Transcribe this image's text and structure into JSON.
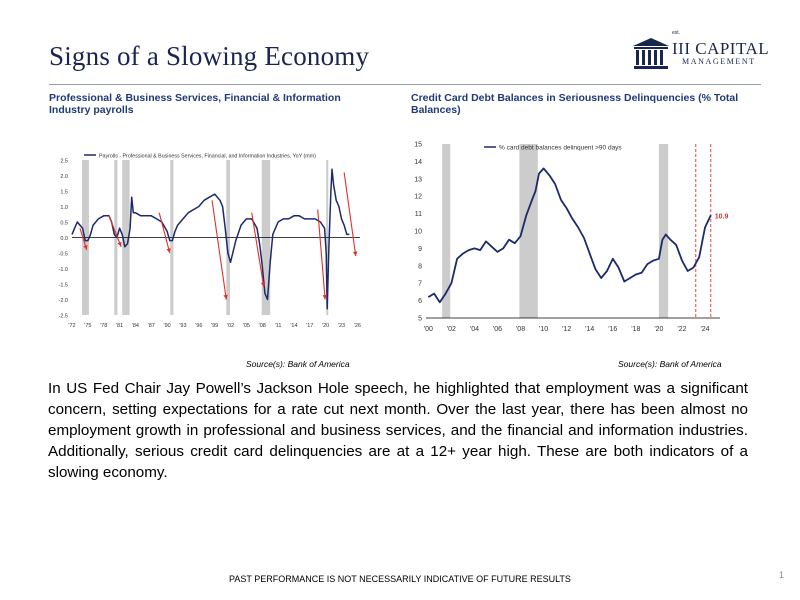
{
  "page": {
    "title": "Signs of a Slowing Economy",
    "logo": {
      "tagline": "est.",
      "main": "III CAPITAL",
      "sub": "MANAGEMENT"
    },
    "body": "In US Fed Chair Jay Powell’s Jackson Hole speech, he highlighted that employment was a significant concern, setting expectations for a rate cut next month. Over the last year, there has been almost no employment growth in professional and business services, and the financial and information industries. Additionally, serious credit card delinquencies are at a 12+ year high. These are both indicators of a slowing economy.",
    "footer": "PAST PERFORMANCE IS NOT NECESSARILY INDICATIVE OF FUTURE RESULTS",
    "page_number": "1"
  },
  "left_panel": {
    "heading": "Professional & Business Services, Financial & Information Industry payrolls",
    "source": "Source(s): Bank of America"
  },
  "right_panel": {
    "heading": "Credit Card Debt Balances in Seriousness Delinquencies (% Total Balances)",
    "source": "Source(s): Bank of America"
  },
  "colors": {
    "navy": "#1a2650",
    "heading_blue": "#1f3a78",
    "series": "#1b2a6b",
    "arrow_red": "#e0312b",
    "recession_grey": "#cccccc"
  },
  "chart_data": [
    {
      "type": "line",
      "legend": "Payrolls - Professional & Business Services, Financial, and Information Industries, YoY (mm)",
      "ylim": [
        -2.5,
        2.5
      ],
      "yticks": [
        "2.5",
        "2.0",
        "1.5",
        "1.0",
        "0.5",
        "0.0",
        "-0.5",
        "-1.0",
        "-1.5",
        "-2.0",
        "-2.5"
      ],
      "xlim": [
        1972,
        2026.5
      ],
      "xticks": [
        "'72",
        "'75",
        "'78",
        "'81",
        "'84",
        "'87",
        "'90",
        "'93",
        "'96",
        "'99",
        "'02",
        "'05",
        "'08",
        "'11",
        "'14",
        "'17",
        "'20",
        "'23",
        "'26"
      ],
      "recessions": [
        [
          1973.9,
          1975.2
        ],
        [
          1980.0,
          1980.6
        ],
        [
          1981.5,
          1982.9
        ],
        [
          1990.6,
          1991.2
        ],
        [
          2001.2,
          2001.9
        ],
        [
          2007.9,
          2009.5
        ],
        [
          2020.1,
          2020.5
        ]
      ],
      "series": [
        {
          "x": [
            1972,
            1972.5,
            1973,
            1973.5,
            1974,
            1974.5,
            1975,
            1975.5,
            1976,
            1976.5,
            1977,
            1978,
            1979,
            1979.5,
            1980,
            1980.5,
            1981,
            1981.5,
            1982,
            1982.5,
            1983,
            1983.3,
            1983.6,
            1984,
            1985,
            1986,
            1987,
            1988,
            1989,
            1990,
            1990.5,
            1991,
            1991.5,
            1992,
            1993,
            1994,
            1995,
            1996,
            1997,
            1998,
            1999,
            2000,
            2000.5,
            2001,
            2001.5,
            2002,
            2003,
            2004,
            2005,
            2006,
            2007,
            2007.5,
            2008,
            2008.5,
            2009,
            2009.5,
            2010,
            2011,
            2012,
            2013,
            2014,
            2015,
            2016,
            2017,
            2018,
            2019,
            2019.8,
            2020.1,
            2020.3,
            2020.6,
            2021,
            2021.2,
            2021.5,
            2022,
            2022.5,
            2023,
            2023.5,
            2024,
            2024.5
          ],
          "y": [
            0.1,
            0.3,
            0.5,
            0.4,
            0.3,
            -0.1,
            -0.1,
            0.1,
            0.4,
            0.5,
            0.6,
            0.7,
            0.7,
            0.5,
            0.1,
            0.0,
            0.3,
            0.1,
            -0.3,
            -0.2,
            0.3,
            1.3,
            0.8,
            0.8,
            0.7,
            0.7,
            0.7,
            0.6,
            0.5,
            0.2,
            -0.1,
            -0.1,
            0.2,
            0.4,
            0.6,
            0.8,
            0.9,
            1.0,
            1.2,
            1.3,
            1.4,
            1.2,
            1.0,
            0.3,
            -0.5,
            -0.8,
            -0.1,
            0.4,
            0.6,
            0.6,
            0.3,
            -0.2,
            -0.9,
            -1.8,
            -2.0,
            -0.8,
            0.1,
            0.5,
            0.6,
            0.6,
            0.7,
            0.7,
            0.6,
            0.6,
            0.6,
            0.5,
            0.3,
            -0.5,
            -2.3,
            -0.4,
            1.5,
            2.2,
            1.7,
            1.2,
            1.0,
            0.6,
            0.4,
            0.1,
            0.1
          ]
        }
      ],
      "arrows": [
        {
          "from": [
            1973.5,
            0.3
          ],
          "to": [
            1974.8,
            -0.4
          ]
        },
        {
          "from": [
            1979.0,
            0.7
          ],
          "to": [
            1981.3,
            -0.3
          ]
        },
        {
          "from": [
            1988.5,
            0.8
          ],
          "to": [
            1990.5,
            -0.5
          ]
        },
        {
          "from": [
            1998.5,
            1.2
          ],
          "to": [
            2001.2,
            -2.0
          ]
        },
        {
          "from": [
            2006.0,
            0.8
          ],
          "to": [
            2008.3,
            -1.6
          ]
        },
        {
          "from": [
            2018.5,
            0.9
          ],
          "to": [
            2019.9,
            -2.0
          ]
        },
        {
          "from": [
            2023.5,
            2.1
          ],
          "to": [
            2025.7,
            -0.6
          ]
        }
      ]
    },
    {
      "type": "line",
      "legend": "% card debt balances delinquent >90 days",
      "ylim": [
        5,
        15
      ],
      "yticks": [
        "15",
        "14",
        "13",
        "12",
        "11",
        "10",
        "9",
        "8",
        "7",
        "6",
        "5"
      ],
      "xlim": [
        1999.8,
        2025.3
      ],
      "xticks": [
        "'00",
        "'02",
        "'04",
        "'06",
        "'08",
        "'10",
        "'12",
        "'14",
        "'16",
        "'18",
        "'20",
        "'22",
        "'24"
      ],
      "recessions": [
        [
          2001.2,
          2001.9
        ],
        [
          2007.9,
          2009.5
        ],
        [
          2020.0,
          2020.8
        ]
      ],
      "vlines": [
        2023.2,
        2024.5
      ],
      "end_label": "10.9",
      "series": [
        {
          "x": [
            2000,
            2000.5,
            2001,
            2001.5,
            2002,
            2002.5,
            2003,
            2003.5,
            2004,
            2004.5,
            2005,
            2005.5,
            2006,
            2006.5,
            2007,
            2007.5,
            2008,
            2008.5,
            2009,
            2009.3,
            2009.6,
            2010,
            2010.5,
            2011,
            2011.5,
            2012,
            2012.5,
            2013,
            2013.5,
            2014,
            2014.5,
            2015,
            2015.5,
            2016,
            2016.5,
            2017,
            2017.5,
            2018,
            2018.5,
            2019,
            2019.5,
            2020,
            2020.3,
            2020.6,
            2021,
            2021.5,
            2022,
            2022.5,
            2023,
            2023.5,
            2024,
            2024.5
          ],
          "y": [
            6.2,
            6.4,
            5.9,
            6.4,
            7.0,
            8.4,
            8.7,
            8.9,
            9.0,
            8.9,
            9.4,
            9.1,
            8.8,
            9.0,
            9.5,
            9.3,
            9.7,
            10.9,
            11.8,
            12.3,
            13.3,
            13.6,
            13.2,
            12.7,
            11.8,
            11.3,
            10.7,
            10.2,
            9.6,
            8.7,
            7.8,
            7.3,
            7.7,
            8.4,
            7.9,
            7.1,
            7.3,
            7.5,
            7.6,
            8.1,
            8.3,
            8.4,
            9.5,
            9.8,
            9.5,
            9.2,
            8.3,
            7.7,
            7.9,
            8.5,
            10.2,
            10.9
          ]
        }
      ]
    }
  ]
}
